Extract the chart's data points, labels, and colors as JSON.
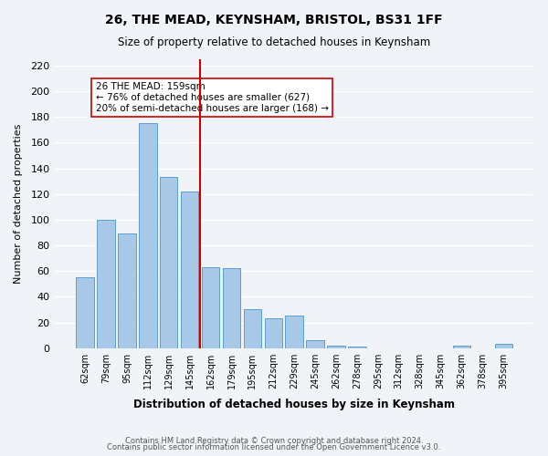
{
  "title": "26, THE MEAD, KEYNSHAM, BRISTOL, BS31 1FF",
  "subtitle": "Size of property relative to detached houses in Keynsham",
  "xlabel": "Distribution of detached houses by size in Keynsham",
  "ylabel": "Number of detached properties",
  "footnote1": "Contains HM Land Registry data © Crown copyright and database right 2024.",
  "footnote2": "Contains public sector information licensed under the Open Government Licence v3.0.",
  "bar_labels": [
    "62sqm",
    "79sqm",
    "95sqm",
    "112sqm",
    "129sqm",
    "145sqm",
    "162sqm",
    "179sqm",
    "195sqm",
    "212sqm",
    "229sqm",
    "245sqm",
    "262sqm",
    "278sqm",
    "295sqm",
    "312sqm",
    "328sqm",
    "345sqm",
    "362sqm",
    "378sqm",
    "395sqm"
  ],
  "bar_values": [
    55,
    100,
    89,
    175,
    133,
    122,
    63,
    62,
    30,
    23,
    25,
    6,
    2,
    1,
    0,
    0,
    0,
    0,
    2,
    0,
    3
  ],
  "bar_color": "#a8c8e8",
  "bar_edge_color": "#5a9fd4",
  "vline_x": 8,
  "vline_color": "#cc0000",
  "annotation_title": "26 THE MEAD: 159sqm",
  "annotation_line1": "← 76% of detached houses are smaller (627)",
  "annotation_line2": "20% of semi-detached houses are larger (168) →",
  "annotation_box_color": "#cc0000",
  "ylim": [
    0,
    225
  ],
  "yticks": [
    0,
    20,
    40,
    60,
    80,
    100,
    120,
    140,
    160,
    180,
    200,
    220
  ],
  "bg_color": "#f0f4f8",
  "grid_color": "#ffffff"
}
